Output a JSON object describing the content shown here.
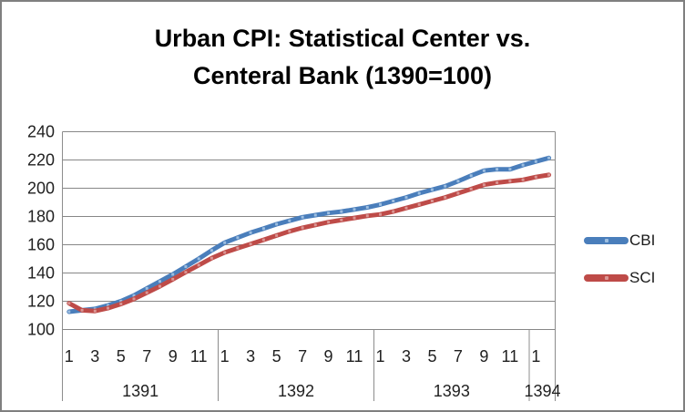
{
  "title": {
    "line1": "Urban CPI: Statistical Center vs.",
    "line2": "Centeral Bank (1390=100)"
  },
  "legend": {
    "position": "right",
    "items": [
      {
        "label": "CBI",
        "color": "#4A7EBB",
        "marker_color": "#9DBEE0"
      },
      {
        "label": "SCI",
        "color": "#BE4B48",
        "marker_color": "#DA9694"
      }
    ]
  },
  "colors": {
    "gridline": "#878787",
    "axis_table_line": "#8c8c8c",
    "tick_text": "#1f1f1f",
    "figure_border": "#7f7f7f",
    "background": "#ffffff"
  },
  "chart_data": {
    "type": "line",
    "title": "Urban CPI: Statistical Center vs. Centeral Bank (1390=100)",
    "xlabel": "",
    "ylabel": "",
    "ylim": [
      100,
      240
    ],
    "y_ticks": [
      100,
      120,
      140,
      160,
      180,
      200,
      220,
      240
    ],
    "grid": true,
    "legend_position": "right",
    "x_axis": {
      "years": [
        {
          "label": "1391",
          "n_months": 12,
          "tick_labels": [
            "1",
            "3",
            "5",
            "7",
            "9",
            "11"
          ]
        },
        {
          "label": "1392",
          "n_months": 12,
          "tick_labels": [
            "1",
            "3",
            "5",
            "7",
            "9",
            "11"
          ]
        },
        {
          "label": "1393",
          "n_months": 12,
          "tick_labels": [
            "1",
            "3",
            "5",
            "7",
            "9",
            "11"
          ]
        },
        {
          "label": "1394",
          "n_months": 2,
          "tick_labels": [
            "1"
          ]
        }
      ]
    },
    "series": [
      {
        "name": "CBI",
        "color": "#4A7EBB",
        "marker_color": "#9DBEE0",
        "values": [
          112.5,
          113.5,
          114.5,
          117,
          120,
          124,
          129,
          134,
          139,
          144.5,
          150,
          156,
          161.5,
          165,
          168.5,
          171.5,
          174.5,
          177,
          179.5,
          181,
          182.5,
          183.5,
          185,
          186.5,
          188.5,
          191,
          193.5,
          196.5,
          199,
          201.5,
          205,
          209,
          212.5,
          213.5,
          213.5,
          216.5,
          219,
          221.5
        ]
      },
      {
        "name": "SCI",
        "color": "#BE4B48",
        "marker_color": "#DA9694",
        "values": [
          118.5,
          113.5,
          113,
          115,
          118,
          121.5,
          126,
          130.5,
          135.5,
          140.5,
          145.5,
          150.5,
          154.5,
          157.5,
          160.5,
          163.5,
          166.5,
          169.5,
          172,
          174,
          176,
          177.5,
          179,
          180.5,
          181.5,
          183.5,
          186,
          188.5,
          191,
          193.5,
          196.5,
          199.5,
          202.5,
          204,
          205,
          206,
          208,
          209.5
        ]
      }
    ]
  }
}
